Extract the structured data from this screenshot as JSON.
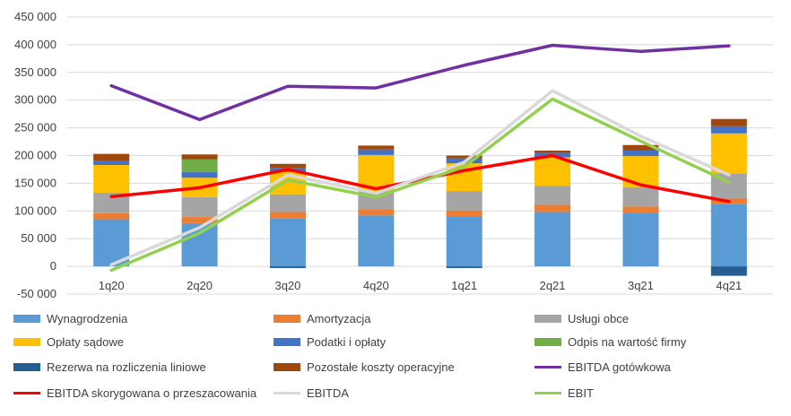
{
  "chart_data": {
    "type": "bar",
    "stacked": true,
    "categories": [
      "1q20",
      "2q20",
      "3q20",
      "4q20",
      "1q21",
      "2q21",
      "3q21",
      "4q21"
    ],
    "ylim": [
      -50000,
      450000
    ],
    "yticks": [
      -50000,
      0,
      50000,
      100000,
      150000,
      200000,
      250000,
      300000,
      350000,
      400000,
      450000
    ],
    "ytick_labels": [
      "-50 000",
      "0",
      "50 000",
      "100 000",
      "150 000",
      "200 000",
      "250 000",
      "300 000",
      "350 000",
      "400 000",
      "450 000"
    ],
    "grid": true,
    "legend_position": "bottom",
    "bar_series": [
      {
        "name": "Wynagrodzenia",
        "color": "#5B9BD5",
        "values": [
          85000,
          78000,
          87000,
          92000,
          90000,
          98000,
          97000,
          112000
        ]
      },
      {
        "name": "Amortyzacja",
        "color": "#ED7D31",
        "values": [
          11000,
          11000,
          11000,
          11000,
          11000,
          13000,
          11000,
          11000
        ]
      },
      {
        "name": "Usługi obce",
        "color": "#A5A5A5",
        "values": [
          37000,
          36000,
          32000,
          33000,
          35000,
          34000,
          35000,
          45000
        ]
      },
      {
        "name": "Opłaty sądowe",
        "color": "#FFC000",
        "values": [
          50000,
          35000,
          40000,
          65000,
          50000,
          52000,
          56000,
          72000
        ]
      },
      {
        "name": "Podatki i opłaty",
        "color": "#4472C4",
        "values": [
          8000,
          10000,
          8000,
          10000,
          9000,
          8000,
          10000,
          13000
        ]
      },
      {
        "name": "Odpis na wartość firmy",
        "color": "#70AD47",
        "values": [
          0,
          23000,
          0,
          0,
          0,
          0,
          0,
          0
        ]
      },
      {
        "name": "Rezerwa na rozliczenia liniowe",
        "color": "#255E91",
        "values": [
          0,
          0,
          -3000,
          0,
          -3000,
          0,
          0,
          -17000
        ]
      },
      {
        "name": "Pozostałe koszty operacyjne",
        "color": "#9E480E",
        "values": [
          12000,
          9000,
          7000,
          7000,
          5000,
          4000,
          10000,
          13000
        ]
      }
    ],
    "line_series": [
      {
        "name": "EBITDA gotówkowa",
        "color": "#7030A0",
        "values": [
          326000,
          265000,
          325000,
          322000,
          363000,
          399000,
          388000,
          398000
        ]
      },
      {
        "name": "EBITDA skorygowana o przeszacowania",
        "color": "#FF0000",
        "values": [
          126000,
          142000,
          175000,
          140000,
          173000,
          200000,
          147000,
          117000
        ]
      },
      {
        "name": "EBITDA",
        "color": "#D9D9D9",
        "values": [
          3000,
          70000,
          165000,
          132000,
          188000,
          317000,
          235000,
          165000
        ]
      },
      {
        "name": "EBIT",
        "color": "#92D050",
        "values": [
          -7000,
          60000,
          156000,
          125000,
          180000,
          302000,
          226000,
          152000
        ]
      }
    ]
  },
  "legend": {
    "items": [
      {
        "name": "Wynagrodzenia",
        "kind": "box",
        "color": "#5B9BD5"
      },
      {
        "name": "Amortyzacja",
        "kind": "box",
        "color": "#ED7D31"
      },
      {
        "name": "Usługi obce",
        "kind": "box",
        "color": "#A5A5A5"
      },
      {
        "name": "Opłaty sądowe",
        "kind": "box",
        "color": "#FFC000"
      },
      {
        "name": "Podatki i opłaty",
        "kind": "box",
        "color": "#4472C4"
      },
      {
        "name": "Odpis na wartość firmy",
        "kind": "box",
        "color": "#70AD47"
      },
      {
        "name": "Rezerwa na rozliczenia liniowe",
        "kind": "box",
        "color": "#255E91"
      },
      {
        "name": "Pozostałe koszty operacyjne",
        "kind": "box",
        "color": "#9E480E"
      },
      {
        "name": "EBITDA gotówkowa",
        "kind": "line",
        "color": "#7030A0"
      },
      {
        "name": "EBITDA skorygowana o przeszacowania",
        "kind": "line",
        "color": "#FF0000"
      },
      {
        "name": "EBITDA",
        "kind": "line",
        "color": "#D9D9D9"
      },
      {
        "name": "EBIT",
        "kind": "line",
        "color": "#92D050"
      }
    ]
  }
}
